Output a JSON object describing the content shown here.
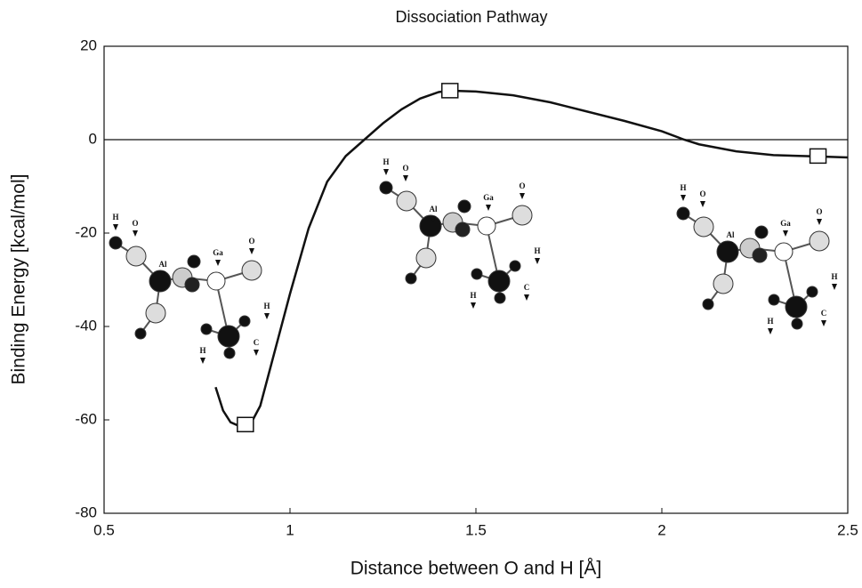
{
  "chart_data": {
    "type": "line",
    "title": "Dissociation Pathway",
    "xlabel": "Distance between O and H [Å]",
    "ylabel": "Binding Energy [kcal/mol]",
    "xlim": [
      0.5,
      2.5
    ],
    "ylim": [
      -80,
      20
    ],
    "xticks": [
      0.5,
      1,
      1.5,
      2,
      2.5
    ],
    "yticks": [
      20,
      0,
      -20,
      -40,
      -60,
      -80
    ],
    "zero_line": true,
    "series": [
      {
        "style": "line",
        "color": "#111111",
        "x": [
          0.8,
          0.82,
          0.84,
          0.86,
          0.88,
          0.9,
          0.92,
          0.95,
          1.0,
          1.05,
          1.1,
          1.15,
          1.2,
          1.25,
          1.3,
          1.35,
          1.4,
          1.43,
          1.5,
          1.6,
          1.7,
          1.8,
          1.9,
          2.0,
          2.06,
          2.1,
          2.2,
          2.3,
          2.42,
          2.5
        ],
        "values": [
          -53,
          -58,
          -60.5,
          -61.2,
          -61,
          -60,
          -57,
          -48,
          -33,
          -19,
          -9,
          -3.5,
          0,
          3.5,
          6.5,
          8.8,
          10.2,
          10.5,
          10.3,
          9.5,
          8,
          6,
          4,
          1.8,
          0,
          -1,
          -2.5,
          -3.3,
          -3.6,
          -3.8
        ]
      },
      {
        "style": "marker",
        "color": "#111111",
        "x": [
          0.88,
          1.43,
          2.42
        ],
        "values": [
          -61,
          10.5,
          -3.5
        ]
      }
    ],
    "molecules": [
      {
        "labels": [
          "H",
          "O",
          "Al",
          "Ga",
          "O",
          "H",
          "H",
          "C"
        ]
      },
      {
        "labels": [
          "H",
          "O",
          "Al",
          "Ga",
          "O",
          "H",
          "H",
          "C"
        ]
      },
      {
        "labels": [
          "H",
          "O",
          "Al",
          "Ga",
          "O",
          "H",
          "H",
          "C"
        ]
      }
    ]
  }
}
